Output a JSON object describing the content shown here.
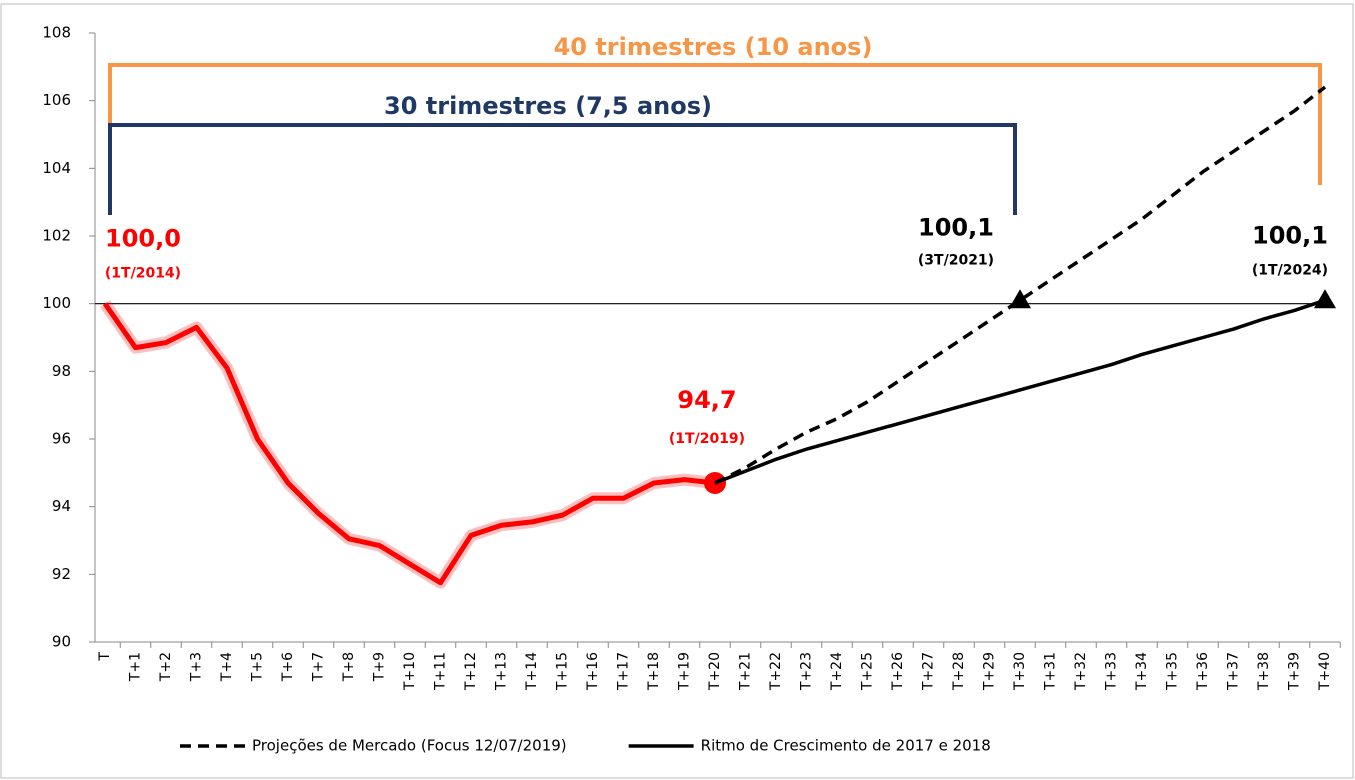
{
  "chart_data": {
    "type": "line",
    "categories": [
      "T",
      "T+1",
      "T+2",
      "T+3",
      "T+4",
      "T+5",
      "T+6",
      "T+7",
      "T+8",
      "T+9",
      "T+10",
      "T+11",
      "T+12",
      "T+13",
      "T+14",
      "T+15",
      "T+16",
      "T+17",
      "T+18",
      "T+19",
      "T+20",
      "T+21",
      "T+22",
      "T+23",
      "T+24",
      "T+25",
      "T+26",
      "T+27",
      "T+28",
      "T+29",
      "T+30",
      "T+31",
      "T+32",
      "T+33",
      "T+34",
      "T+35",
      "T+36",
      "T+37",
      "T+38",
      "T+39",
      "T+40"
    ],
    "ylim": [
      90,
      108
    ],
    "yticks": [
      90,
      92,
      94,
      96,
      98,
      100,
      102,
      104,
      106,
      108
    ],
    "reference_line": 100,
    "series": [
      {
        "color": "#ff0000",
        "style": "solid",
        "glow": true,
        "end_marker": "circle",
        "values": [
          100.0,
          98.7,
          98.85,
          99.3,
          98.1,
          96.0,
          94.7,
          93.8,
          93.05,
          92.85,
          92.3,
          91.75,
          93.15,
          93.45,
          93.55,
          93.75,
          94.25,
          94.25,
          94.7,
          94.8,
          94.7,
          null,
          null,
          null,
          null,
          null,
          null,
          null,
          null,
          null,
          null,
          null,
          null,
          null,
          null,
          null,
          null,
          null,
          null,
          null,
          null
        ],
        "value_labels": [
          "100,0",
          null,
          null,
          null,
          null,
          null,
          null,
          null,
          null,
          null,
          null,
          null,
          null,
          null,
          null,
          null,
          null,
          null,
          null,
          null,
          "94,7",
          null,
          null,
          null,
          null,
          null,
          null,
          null,
          null,
          null,
          null,
          null,
          null,
          null,
          null,
          null,
          null,
          null,
          null,
          null,
          null
        ],
        "label_notes": [
          "(1T/2014)",
          null,
          null,
          null,
          null,
          null,
          null,
          null,
          null,
          null,
          null,
          null,
          null,
          null,
          null,
          null,
          null,
          null,
          null,
          null,
          "(1T/2019)",
          null,
          null,
          null,
          null,
          null,
          null,
          null,
          null,
          null,
          null,
          null,
          null,
          null,
          null,
          null,
          null,
          null,
          null,
          null,
          null
        ]
      },
      {
        "name": "Projeções de Mercado (Focus 12/07/2019)",
        "color": "#000000",
        "style": "dashed",
        "labeled_marker": "triangle",
        "values": [
          null,
          null,
          null,
          null,
          null,
          null,
          null,
          null,
          null,
          null,
          null,
          null,
          null,
          null,
          null,
          null,
          null,
          null,
          null,
          null,
          94.7,
          95.15,
          95.7,
          96.2,
          96.6,
          97.1,
          97.7,
          98.3,
          98.9,
          99.5,
          100.1,
          100.7,
          101.3,
          101.9,
          102.5,
          103.2,
          103.9,
          104.5,
          105.1,
          105.7,
          106.4
        ],
        "value_labels": [
          null,
          null,
          null,
          null,
          null,
          null,
          null,
          null,
          null,
          null,
          null,
          null,
          null,
          null,
          null,
          null,
          null,
          null,
          null,
          null,
          null,
          null,
          null,
          null,
          null,
          null,
          null,
          null,
          null,
          null,
          "100,1",
          null,
          null,
          null,
          null,
          null,
          null,
          null,
          null,
          null,
          null
        ],
        "label_notes": [
          null,
          null,
          null,
          null,
          null,
          null,
          null,
          null,
          null,
          null,
          null,
          null,
          null,
          null,
          null,
          null,
          null,
          null,
          null,
          null,
          null,
          null,
          null,
          null,
          null,
          null,
          null,
          null,
          null,
          null,
          "(3T/2021)",
          null,
          null,
          null,
          null,
          null,
          null,
          null,
          null,
          null,
          null
        ]
      },
      {
        "name": "Ritmo de Crescimento de 2017 e 2018",
        "color": "#000000",
        "style": "solid",
        "labeled_marker": "triangle",
        "values": [
          null,
          null,
          null,
          null,
          null,
          null,
          null,
          null,
          null,
          null,
          null,
          null,
          null,
          null,
          null,
          null,
          null,
          null,
          null,
          null,
          94.7,
          95.05,
          95.4,
          95.7,
          95.95,
          96.2,
          96.45,
          96.7,
          96.95,
          97.2,
          97.45,
          97.7,
          97.95,
          98.2,
          98.5,
          98.75,
          99.0,
          99.25,
          99.55,
          99.8,
          100.1
        ],
        "value_labels": [
          null,
          null,
          null,
          null,
          null,
          null,
          null,
          null,
          null,
          null,
          null,
          null,
          null,
          null,
          null,
          null,
          null,
          null,
          null,
          null,
          null,
          null,
          null,
          null,
          null,
          null,
          null,
          null,
          null,
          null,
          null,
          null,
          null,
          null,
          null,
          null,
          null,
          null,
          null,
          null,
          "100,1"
        ],
        "label_notes": [
          null,
          null,
          null,
          null,
          null,
          null,
          null,
          null,
          null,
          null,
          null,
          null,
          null,
          null,
          null,
          null,
          null,
          null,
          null,
          null,
          null,
          null,
          null,
          null,
          null,
          null,
          null,
          null,
          null,
          null,
          null,
          null,
          null,
          null,
          null,
          null,
          null,
          null,
          null,
          null,
          "(1T/2024)"
        ]
      }
    ],
    "brackets": [
      {
        "label": "40 trimestres (10 anos)",
        "color": "#f79646",
        "start": "T",
        "end": "T+40"
      },
      {
        "label": "30 trimestres (7,5 anos)",
        "color": "#1f3864",
        "start": "T",
        "end": "T+30"
      }
    ],
    "legend": "bottom"
  }
}
